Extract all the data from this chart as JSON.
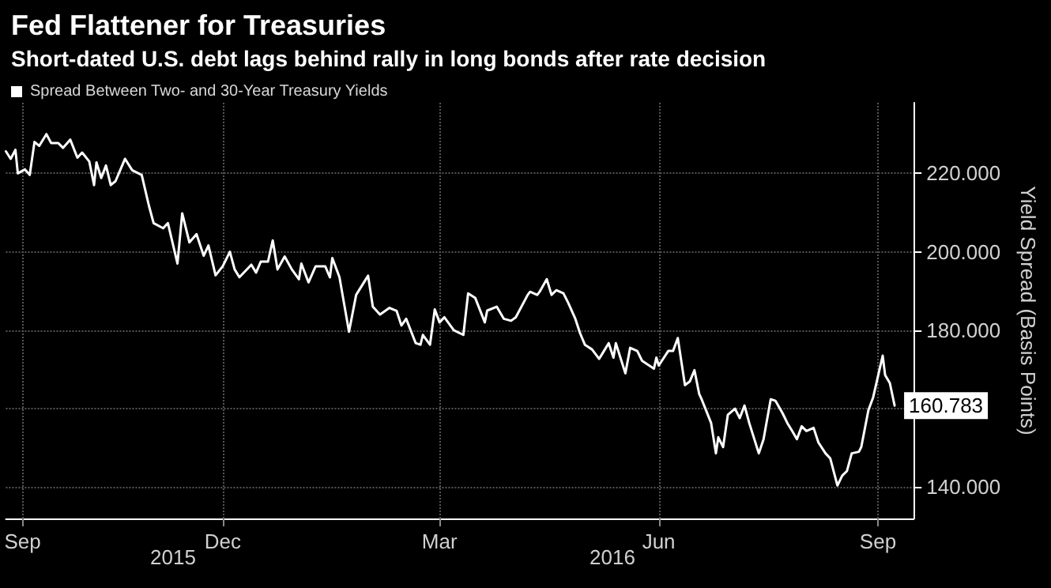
{
  "chart_data": {
    "type": "line",
    "title": "Fed Flattener for Treasuries",
    "subtitle": "Short-dated U.S. debt lags behind rally in long bonds after rate decision",
    "ylabel": "Yield Spread (Basis Points)",
    "annotations": [
      "2015",
      "2016"
    ],
    "x": [
      "2015-09-15",
      "2015-09-17",
      "2015-09-19",
      "2015-09-20",
      "2015-09-23",
      "2015-09-25",
      "2015-09-27",
      "2015-09-29",
      "2015-10-02",
      "2015-10-04",
      "2015-10-07",
      "2015-10-09",
      "2015-10-12",
      "2015-10-15",
      "2015-10-17",
      "2015-10-20",
      "2015-10-22",
      "2015-10-23",
      "2015-10-25",
      "2015-10-27",
      "2015-10-29",
      "2015-10-31",
      "2015-11-04",
      "2015-11-07",
      "2015-11-11",
      "2015-11-14",
      "2015-11-16",
      "2015-11-20",
      "2015-11-22",
      "2015-11-26",
      "2015-11-28",
      "2015-12-01",
      "2015-12-04",
      "2015-12-07",
      "2015-12-09",
      "2015-12-12",
      "2015-12-15",
      "2015-12-18",
      "2015-12-20",
      "2015-12-22",
      "2015-12-27",
      "2015-12-29",
      "2015-12-31",
      "2016-01-03",
      "2016-01-05",
      "2016-01-07",
      "2016-01-10",
      "2016-01-13",
      "2016-01-16",
      "2016-01-17",
      "2016-01-20",
      "2016-01-23",
      "2016-01-27",
      "2016-01-29",
      "2016-01-30",
      "2016-02-02",
      "2016-02-06",
      "2016-02-09",
      "2016-02-14",
      "2016-02-16",
      "2016-02-19",
      "2016-02-23",
      "2016-02-26",
      "2016-02-28",
      "2016-03-01",
      "2016-03-05",
      "2016-03-07",
      "2016-03-08",
      "2016-03-11",
      "2016-03-13",
      "2016-03-15",
      "2016-03-17",
      "2016-03-21",
      "2016-03-25",
      "2016-03-27",
      "2016-03-30",
      "2016-04-03",
      "2016-04-04",
      "2016-04-08",
      "2016-04-11",
      "2016-04-14",
      "2016-04-16",
      "2016-04-21",
      "2016-04-22",
      "2016-04-25",
      "2016-04-26",
      "2016-04-29",
      "2016-05-01",
      "2016-05-03",
      "2016-05-06",
      "2016-05-08",
      "2016-05-11",
      "2016-05-13",
      "2016-05-15",
      "2016-05-18",
      "2016-05-21",
      "2016-05-23",
      "2016-05-25",
      "2016-05-27",
      "2016-05-28",
      "2016-06-01",
      "2016-06-03",
      "2016-06-06",
      "2016-06-08",
      "2016-06-10",
      "2016-06-13",
      "2016-06-14",
      "2016-06-15",
      "2016-06-19",
      "2016-06-21",
      "2016-06-23",
      "2016-06-26",
      "2016-06-28",
      "2016-06-30",
      "2016-07-02",
      "2016-07-03",
      "2016-07-07",
      "2016-07-09",
      "2016-07-10",
      "2016-07-12",
      "2016-07-14",
      "2016-07-17",
      "2016-07-19",
      "2016-07-21",
      "2016-07-23",
      "2016-07-27",
      "2016-07-29",
      "2016-08-01",
      "2016-08-03",
      "2016-08-06",
      "2016-08-08",
      "2016-08-10",
      "2016-08-12",
      "2016-08-14",
      "2016-08-16",
      "2016-08-19",
      "2016-08-21",
      "2016-08-24",
      "2016-08-26",
      "2016-08-29",
      "2016-08-31",
      "2016-09-02",
      "2016-09-04",
      "2016-09-07",
      "2016-09-08",
      "2016-09-11",
      "2016-09-13",
      "2016-09-17",
      "2016-09-18",
      "2016-09-20",
      "2016-09-22"
    ],
    "series": [
      {
        "name": "Spread Between Two- and 30-Year Treasury Yields",
        "color": "#ffffff",
        "values": [
          225.6,
          223.7,
          226,
          220,
          221,
          219.6,
          228,
          227,
          230,
          227.7,
          227.7,
          226.5,
          228.6,
          224,
          225.3,
          223,
          217,
          222.8,
          218.8,
          222,
          217,
          218,
          223.7,
          220.8,
          219.6,
          211.8,
          207.3,
          206,
          207.3,
          197,
          209.8,
          202.4,
          204.5,
          199,
          201.6,
          194,
          196.3,
          200,
          195.5,
          193.5,
          196.7,
          194.7,
          197.5,
          197.5,
          202.9,
          195.5,
          198.8,
          195.5,
          193,
          197,
          192.2,
          196.3,
          196.3,
          193.5,
          198.4,
          193.5,
          179.6,
          189,
          193.9,
          186,
          184,
          185.7,
          184.9,
          181.2,
          182.9,
          176.7,
          176.3,
          178.8,
          176.3,
          185.3,
          182,
          183.3,
          180,
          178.8,
          189.4,
          188.2,
          182,
          185,
          186,
          182.9,
          182.4,
          183.3,
          189,
          189.8,
          189,
          189.8,
          193,
          189,
          190.2,
          189.4,
          187,
          182.9,
          179.2,
          176.3,
          175.1,
          172.7,
          174.7,
          176.7,
          173,
          176.7,
          169,
          175.5,
          174.7,
          172.2,
          171.4,
          170.2,
          173,
          171,
          174.7,
          174.7,
          178,
          166,
          166.9,
          169.8,
          163.7,
          162.4,
          156.3,
          148.6,
          152.7,
          150.2,
          158.4,
          160,
          157.6,
          160.8,
          156.3,
          148.6,
          152.2,
          162.4,
          162,
          158.8,
          156.3,
          154.3,
          152.2,
          155.5,
          154.3,
          155.1,
          151.4,
          148.6,
          147.3,
          140.4,
          142.9,
          144.1,
          148.6,
          149,
          150.2,
          159.6,
          162.9,
          173.5,
          168.6,
          166.5,
          160.783
        ],
        "value_labels": [
          null,
          null,
          null,
          null,
          null,
          null,
          null,
          null,
          null,
          null,
          null,
          null,
          null,
          null,
          null,
          null,
          null,
          null,
          null,
          null,
          null,
          null,
          null,
          null,
          null,
          null,
          null,
          null,
          null,
          null,
          null,
          null,
          null,
          null,
          null,
          null,
          null,
          null,
          null,
          null,
          null,
          null,
          null,
          null,
          null,
          null,
          null,
          null,
          null,
          null,
          null,
          null,
          null,
          null,
          null,
          null,
          null,
          null,
          null,
          null,
          null,
          null,
          null,
          null,
          null,
          null,
          null,
          null,
          null,
          null,
          null,
          null,
          null,
          null,
          null,
          null,
          null,
          null,
          null,
          null,
          null,
          null,
          null,
          null,
          null,
          null,
          null,
          null,
          null,
          null,
          null,
          null,
          null,
          null,
          null,
          null,
          null,
          null,
          null,
          null,
          null,
          null,
          null,
          null,
          null,
          null,
          null,
          null,
          null,
          null,
          null,
          null,
          null,
          null,
          null,
          null,
          null,
          null,
          null,
          null,
          null,
          null,
          null,
          null,
          null,
          null,
          null,
          null,
          null,
          null,
          null,
          null,
          null,
          null,
          null,
          null,
          null,
          null,
          null,
          null,
          null,
          null,
          null,
          null,
          null,
          null,
          null,
          null,
          null,
          null,
          "160.783"
        ]
      }
    ],
    "xlim": [
      "2015-09-15",
      "2016-09-30"
    ],
    "xticks": [
      {
        "value": "2015-09-22",
        "label": "Sep"
      },
      {
        "value": "2015-12-15",
        "label": "Dec"
      },
      {
        "value": "2016-03-15",
        "label": "Mar"
      },
      {
        "value": "2016-06-15",
        "label": "Jun"
      },
      {
        "value": "2016-09-15",
        "label": "Sep"
      }
    ],
    "ylim": [
      132,
      238
    ],
    "yticks": [
      {
        "value": 140,
        "label": "140.000"
      },
      {
        "value": 160,
        "label": null
      },
      {
        "value": 180,
        "label": "180.000"
      },
      {
        "value": 200,
        "label": "200.000"
      },
      {
        "value": 220,
        "label": "220.000"
      }
    ],
    "grid": true,
    "legend": "top left",
    "marker": "none",
    "line_style": "solid"
  }
}
